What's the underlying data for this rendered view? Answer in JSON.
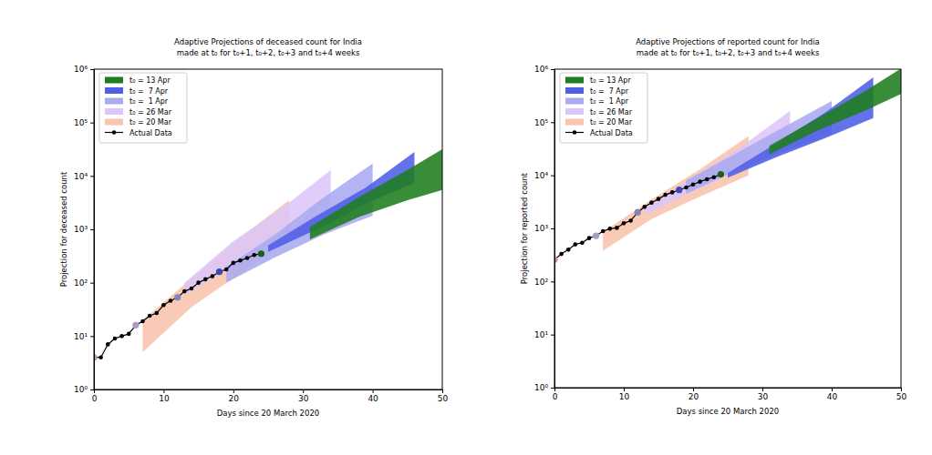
{
  "chart_data": [
    {
      "type": "line",
      "title": "Adaptive Projections of deceased count for India",
      "subtitle": "made at t₀ for t₀+1, t₀+2, t₀+3 and t₀+4 weeks",
      "x_label": "Days since 20 March 2020",
      "y_label": "Projection for deceased count",
      "log": "y",
      "grid": false,
      "legend": "upper left",
      "xlim": [
        0,
        50
      ],
      "xticks": [
        0,
        10,
        20,
        30,
        40,
        50
      ],
      "ylim": [
        1,
        1000000
      ],
      "yticks": [
        {
          "value": 1,
          "label": "10⁰"
        },
        {
          "value": 10,
          "label": "10¹"
        },
        {
          "value": 100,
          "label": "10²"
        },
        {
          "value": 1000,
          "label": "10³"
        },
        {
          "value": 10000,
          "label": "10⁴"
        },
        {
          "value": 100000,
          "label": "10⁵"
        },
        {
          "value": 1000000,
          "label": "10⁶"
        }
      ],
      "series": [
        {
          "name": "t₀ = 13 Apr",
          "type": "area",
          "color": "#1e7d1e",
          "t0": 24,
          "x": [
            31,
            38,
            45,
            52
          ],
          "lower": [
            650,
            1700,
            3500,
            6500
          ],
          "upper": [
            1100,
            4000,
            13000,
            45000
          ]
        },
        {
          "name": "t₀ =  7 Apr",
          "type": "area",
          "color": "#4f5fe6",
          "t0": 18,
          "x": [
            25,
            32,
            39,
            46
          ],
          "lower": [
            380,
            1000,
            3000,
            7500
          ],
          "upper": [
            500,
            1800,
            6000,
            28000
          ]
        },
        {
          "name": "t₀ =  1 Apr",
          "type": "area",
          "color": "#aaaaf0",
          "t0": 12,
          "x": [
            19,
            26,
            33,
            40
          ],
          "lower": [
            100,
            300,
            800,
            1800
          ],
          "upper": [
            200,
            800,
            4000,
            17000
          ]
        },
        {
          "name": "t₀ = 26 Mar",
          "type": "area",
          "color": "#dcc6f8",
          "t0": 6,
          "x": [
            13,
            20,
            27,
            34
          ],
          "lower": [
            60,
            200,
            600,
            1500
          ],
          "upper": [
            100,
            600,
            2500,
            13000
          ]
        },
        {
          "name": "t₀ = 20 Mar",
          "type": "area",
          "color": "#f8c4ac",
          "t0": 0,
          "x": [
            7,
            14,
            21,
            28
          ],
          "lower": [
            5,
            35,
            150,
            600
          ],
          "upper": [
            20,
            120,
            700,
            3500
          ]
        },
        {
          "name": "Actual Data",
          "type": "line",
          "color": "#000000",
          "marker": "circle",
          "x": [
            0,
            1,
            2,
            3,
            4,
            5,
            6,
            7,
            8,
            9,
            10,
            11,
            12,
            13,
            14,
            15,
            16,
            17,
            18,
            19,
            20,
            21,
            22,
            23,
            24
          ],
          "values": [
            4,
            4,
            7,
            9,
            10,
            11,
            16,
            19,
            24,
            27,
            38,
            46,
            53,
            69,
            78,
            100,
            116,
            132,
            160,
            178,
            235,
            260,
            290,
            330,
            350
          ]
        }
      ]
    },
    {
      "type": "line",
      "title": "Adaptive Projections of reported count for India",
      "subtitle": "made at t₀ for t₀+1, t₀+2, t₀+3 and t₀+4 weeks",
      "x_label": "Days since 20 March 2020",
      "y_label": "Projection for reported count",
      "log": "y",
      "grid": false,
      "legend": "upper left",
      "xlim": [
        0,
        50
      ],
      "xticks": [
        0,
        10,
        20,
        30,
        40,
        50
      ],
      "ylim": [
        1,
        1000000
      ],
      "yticks": [
        {
          "value": 1,
          "label": "10⁰"
        },
        {
          "value": 10,
          "label": "10¹"
        },
        {
          "value": 100,
          "label": "10²"
        },
        {
          "value": 1000,
          "label": "10³"
        },
        {
          "value": 10000,
          "label": "10⁴"
        },
        {
          "value": 100000,
          "label": "10⁵"
        },
        {
          "value": 1000000,
          "label": "10⁶"
        }
      ],
      "series": [
        {
          "name": "t₀ = 13 Apr",
          "type": "area",
          "color": "#1e7d1e",
          "t0": 24,
          "x": [
            31,
            38,
            45,
            52
          ],
          "lower": [
            25000,
            70000,
            170000,
            450000
          ],
          "upper": [
            36000,
            120000,
            400000,
            1500000
          ]
        },
        {
          "name": "t₀ =  7 Apr",
          "type": "area",
          "color": "#4f5fe6",
          "t0": 18,
          "x": [
            25,
            32,
            39,
            46
          ],
          "lower": [
            9000,
            22000,
            50000,
            120000
          ],
          "upper": [
            11000,
            40000,
            150000,
            700000
          ]
        },
        {
          "name": "t₀ =  1 Apr",
          "type": "area",
          "color": "#aaaaf0",
          "t0": 12,
          "x": [
            19,
            26,
            33,
            40
          ],
          "lower": [
            4500,
            12000,
            28000,
            60000
          ],
          "upper": [
            8000,
            25000,
            80000,
            250000
          ]
        },
        {
          "name": "t₀ = 26 Mar",
          "type": "area",
          "color": "#dcc6f8",
          "t0": 6,
          "x": [
            13,
            20,
            27,
            34
          ],
          "lower": [
            1800,
            5000,
            13000,
            35000
          ],
          "upper": [
            2500,
            9000,
            35000,
            165000
          ]
        },
        {
          "name": "t₀ = 20 Mar",
          "type": "area",
          "color": "#f8c4ac",
          "t0": 0,
          "x": [
            7,
            14,
            21,
            28
          ],
          "lower": [
            380,
            1500,
            4000,
            10000
          ],
          "upper": [
            850,
            3500,
            13000,
            55000
          ]
        },
        {
          "name": "Actual Data",
          "type": "line",
          "color": "#000000",
          "marker": "circle",
          "x": [
            0,
            1,
            2,
            3,
            4,
            5,
            6,
            7,
            8,
            9,
            10,
            11,
            12,
            13,
            14,
            15,
            16,
            17,
            18,
            19,
            20,
            21,
            22,
            23,
            24
          ],
          "values": [
            258,
            330,
            398,
            499,
            536,
            657,
            727,
            887,
            987,
            1024,
            1251,
            1397,
            1998,
            2543,
            3059,
            3588,
            4289,
            4778,
            5311,
            5916,
            6725,
            7598,
            8446,
            9205,
            10453
          ]
        }
      ]
    }
  ]
}
